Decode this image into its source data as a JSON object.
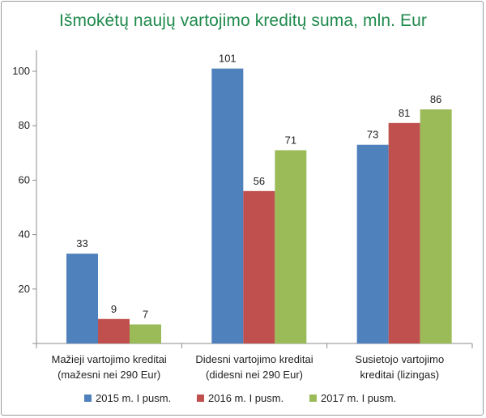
{
  "chart_data": {
    "type": "bar",
    "title": "Išmokėtų naujų vartojimo kreditų suma,  mln. Eur",
    "categories": [
      [
        "Mažieji vartojimo kreditai",
        "(mažesni nei 290 Eur)"
      ],
      [
        "Didesni vartojimo kreditai",
        "(didesni nei 290 Eur)"
      ],
      [
        "Susietojo vartojimo",
        "kreditai (lizingas)"
      ]
    ],
    "series": [
      {
        "name": "2015 m. I pusm.",
        "color": "#4f81bd",
        "values": [
          33,
          101,
          73
        ]
      },
      {
        "name": "2016 m. I pusm.",
        "color": "#c0504d",
        "values": [
          9,
          56,
          81
        ]
      },
      {
        "name": "2017 m. I pusm.",
        "color": "#9bbb59",
        "values": [
          7,
          71,
          86
        ]
      }
    ],
    "ylim": [
      0,
      100
    ],
    "yticks": [
      20,
      40,
      60,
      80,
      100
    ],
    "grid": false,
    "legend": "bottom"
  }
}
